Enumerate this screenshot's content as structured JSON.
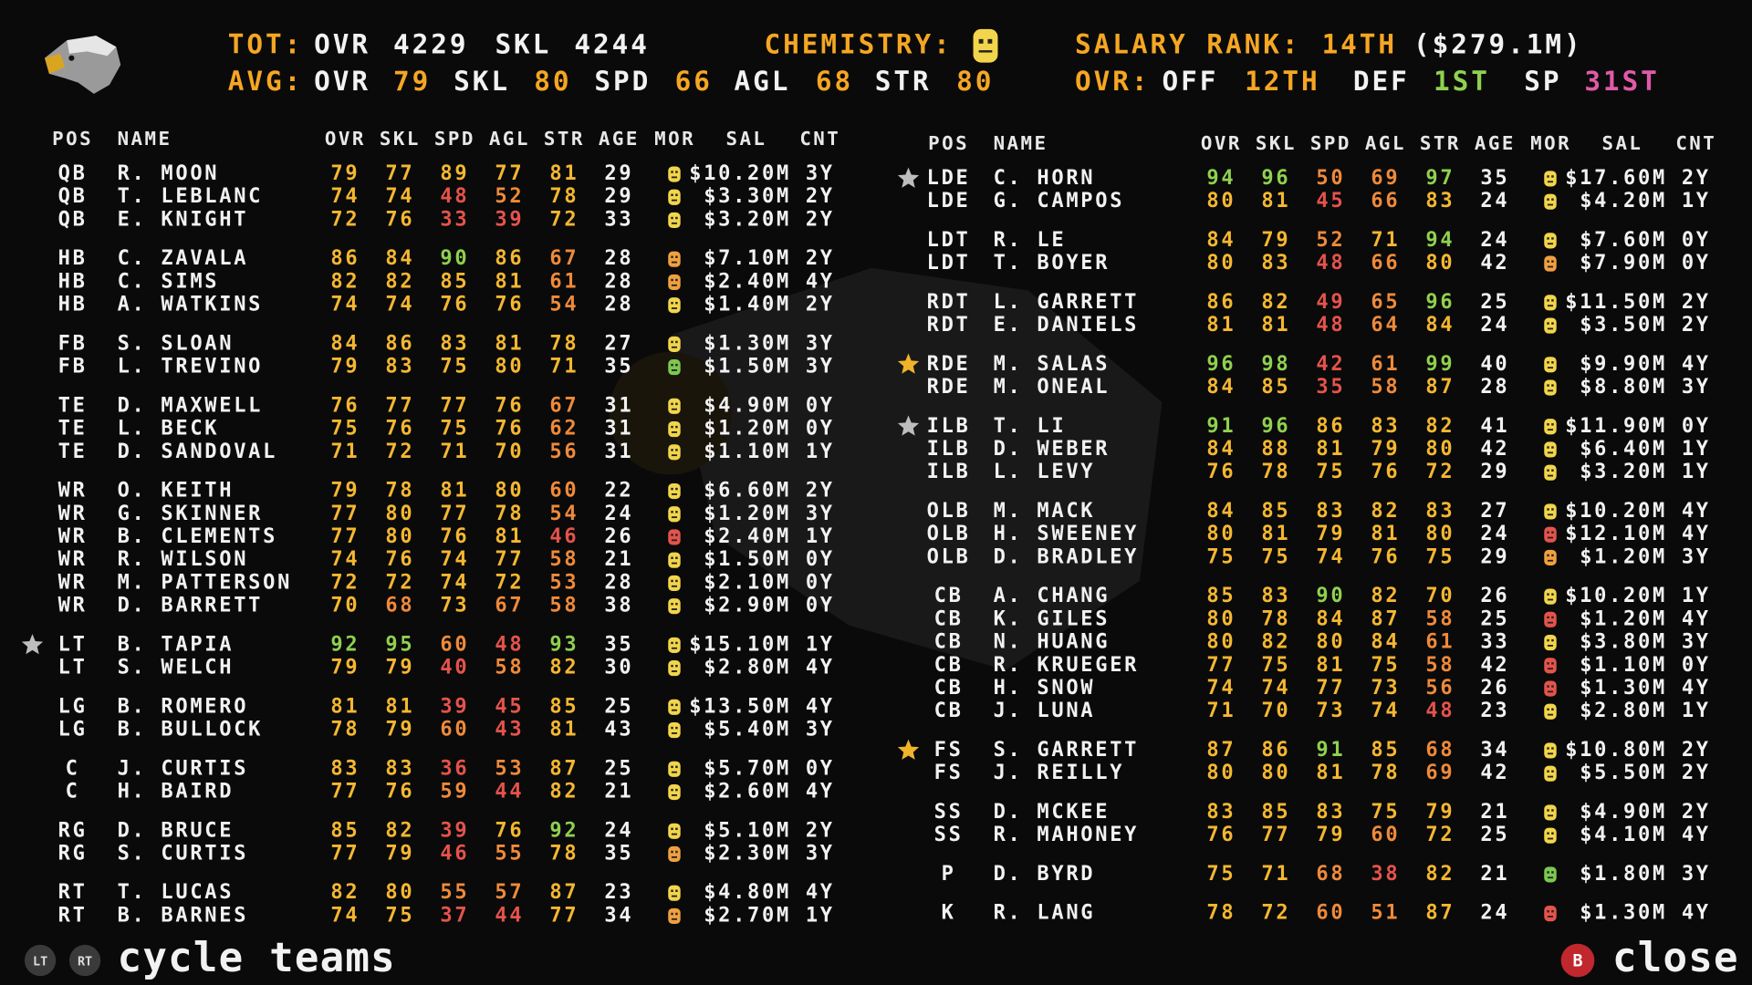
{
  "header": {
    "tot_label": "TOT:",
    "tot_ovr_label": "OVR",
    "tot_ovr": "4229",
    "tot_skl_label": "SKL",
    "tot_skl": "4244",
    "chemistry_label": "CHEMISTRY:",
    "salary_rank_label": "SALARY RANK:",
    "salary_rank": "14TH",
    "salary_total": "($279.1M)",
    "avg_label": "AVG:",
    "avg_ovr_label": "OVR",
    "avg_ovr": "79",
    "avg_skl_label": "SKL",
    "avg_skl": "80",
    "avg_spd_label": "SPD",
    "avg_spd": "66",
    "avg_agl_label": "AGL",
    "avg_agl": "68",
    "avg_str_label": "STR",
    "avg_str": "80",
    "rank_label": "OVR:",
    "off_label": "OFF",
    "off_rank": "12TH",
    "def_label": "DEF",
    "def_rank": "1ST",
    "sp_label": "SP",
    "sp_rank": "31ST"
  },
  "columns": [
    "POS",
    "NAME",
    "OVR",
    "SKL",
    "SPD",
    "AGL",
    "STR",
    "AGE",
    "MOR",
    "SAL",
    "CNT"
  ],
  "left_table": {
    "rows": [
      {
        "pos": "QB",
        "name": "R. MOON",
        "ovr": 79,
        "skl": 77,
        "spd": 89,
        "agl": 77,
        "str": 81,
        "age": 29,
        "morale": "#f2d54a",
        "sal": "$10.20M",
        "cnt": "3Y"
      },
      {
        "pos": "QB",
        "name": "T. LEBLANC",
        "ovr": 74,
        "skl": 74,
        "spd": 48,
        "agl": 52,
        "str": 78,
        "age": 29,
        "morale": "#f2d54a",
        "sal": "$3.30M",
        "cnt": "2Y"
      },
      {
        "pos": "QB",
        "name": "E. KNIGHT",
        "ovr": 72,
        "skl": 76,
        "spd": 33,
        "agl": 39,
        "str": 72,
        "age": 33,
        "morale": "#f2d54a",
        "sal": "$3.20M",
        "cnt": "2Y"
      },
      {
        "pos": "HB",
        "name": "C. ZAVALA",
        "ovr": 86,
        "skl": 84,
        "spd": 90,
        "agl": 86,
        "str": 67,
        "age": 28,
        "morale": "#f0a040",
        "sal": "$7.10M",
        "cnt": "2Y"
      },
      {
        "pos": "HB",
        "name": "C. SIMS",
        "ovr": 82,
        "skl": 82,
        "spd": 85,
        "agl": 81,
        "str": 61,
        "age": 28,
        "morale": "#f0a040",
        "sal": "$2.40M",
        "cnt": "4Y"
      },
      {
        "pos": "HB",
        "name": "A. WATKINS",
        "ovr": 74,
        "skl": 74,
        "spd": 76,
        "agl": 76,
        "str": 54,
        "age": 28,
        "morale": "#f2d54a",
        "sal": "$1.40M",
        "cnt": "2Y"
      },
      {
        "pos": "FB",
        "name": "S. SLOAN",
        "ovr": 84,
        "skl": 86,
        "spd": 83,
        "agl": 81,
        "str": 78,
        "age": 27,
        "morale": "#f2d54a",
        "sal": "$1.30M",
        "cnt": "3Y"
      },
      {
        "pos": "FB",
        "name": "L. TREVINO",
        "ovr": 79,
        "skl": 83,
        "spd": 75,
        "agl": 80,
        "str": 71,
        "age": 35,
        "morale": "#7cc850",
        "sal": "$1.50M",
        "cnt": "3Y"
      },
      {
        "pos": "TE",
        "name": "D. MAXWELL",
        "ovr": 76,
        "skl": 77,
        "spd": 77,
        "agl": 76,
        "str": 67,
        "age": 31,
        "morale": "#f2d54a",
        "sal": "$4.90M",
        "cnt": "0Y"
      },
      {
        "pos": "TE",
        "name": "L. BECK",
        "ovr": 75,
        "skl": 76,
        "spd": 75,
        "agl": 76,
        "str": 62,
        "age": 31,
        "morale": "#f2d54a",
        "sal": "$1.20M",
        "cnt": "0Y"
      },
      {
        "pos": "TE",
        "name": "D. SANDOVAL",
        "ovr": 71,
        "skl": 72,
        "spd": 71,
        "agl": 70,
        "str": 56,
        "age": 31,
        "morale": "#f2d54a",
        "sal": "$1.10M",
        "cnt": "1Y"
      },
      {
        "pos": "WR",
        "name": "O. KEITH",
        "ovr": 79,
        "skl": 78,
        "spd": 81,
        "agl": 80,
        "str": 60,
        "age": 22,
        "morale": "#f2d54a",
        "sal": "$6.60M",
        "cnt": "2Y"
      },
      {
        "pos": "WR",
        "name": "G. SKINNER",
        "ovr": 77,
        "skl": 80,
        "spd": 77,
        "agl": 78,
        "str": 54,
        "age": 24,
        "morale": "#f2d54a",
        "sal": "$1.20M",
        "cnt": "3Y"
      },
      {
        "pos": "WR",
        "name": "B. CLEMENTS",
        "ovr": 77,
        "skl": 80,
        "spd": 76,
        "agl": 81,
        "str": 46,
        "age": 26,
        "morale": "#e5534b",
        "sal": "$2.40M",
        "cnt": "1Y"
      },
      {
        "pos": "WR",
        "name": "R. WILSON",
        "ovr": 74,
        "skl": 76,
        "spd": 74,
        "agl": 77,
        "str": 58,
        "age": 21,
        "morale": "#f2d54a",
        "sal": "$1.50M",
        "cnt": "0Y"
      },
      {
        "pos": "WR",
        "name": "M. PATTERSON",
        "ovr": 72,
        "skl": 72,
        "spd": 74,
        "agl": 72,
        "str": 53,
        "age": 28,
        "morale": "#f2d54a",
        "sal": "$2.10M",
        "cnt": "0Y"
      },
      {
        "pos": "WR",
        "name": "D. BARRETT",
        "ovr": 70,
        "skl": 68,
        "spd": 73,
        "agl": 67,
        "str": 58,
        "age": 38,
        "morale": "#f2d54a",
        "sal": "$2.90M",
        "cnt": "0Y"
      },
      {
        "pos": "LT",
        "name": "B. TAPIA",
        "ovr": 92,
        "skl": 95,
        "spd": 60,
        "agl": 48,
        "str": 93,
        "age": 35,
        "morale": "#f2d54a",
        "sal": "$15.10M",
        "cnt": "1Y",
        "star": "#bdbdbd"
      },
      {
        "pos": "LT",
        "name": "S. WELCH",
        "ovr": 79,
        "skl": 79,
        "spd": 40,
        "agl": 58,
        "str": 82,
        "age": 30,
        "morale": "#f2d54a",
        "sal": "$2.80M",
        "cnt": "4Y"
      },
      {
        "pos": "LG",
        "name": "B. ROMERO",
        "ovr": 81,
        "skl": 81,
        "spd": 39,
        "agl": 45,
        "str": 85,
        "age": 25,
        "morale": "#f2d54a",
        "sal": "$13.50M",
        "cnt": "4Y"
      },
      {
        "pos": "LG",
        "name": "B. BULLOCK",
        "ovr": 78,
        "skl": 79,
        "spd": 60,
        "agl": 43,
        "str": 81,
        "age": 43,
        "morale": "#f2d54a",
        "sal": "$5.40M",
        "cnt": "3Y"
      },
      {
        "pos": "C",
        "name": "J. CURTIS",
        "ovr": 83,
        "skl": 83,
        "spd": 36,
        "agl": 53,
        "str": 87,
        "age": 25,
        "morale": "#f2d54a",
        "sal": "$5.70M",
        "cnt": "0Y"
      },
      {
        "pos": "C",
        "name": "H. BAIRD",
        "ovr": 77,
        "skl": 76,
        "spd": 59,
        "agl": 44,
        "str": 82,
        "age": 21,
        "morale": "#f2d54a",
        "sal": "$2.60M",
        "cnt": "4Y"
      },
      {
        "pos": "RG",
        "name": "D. BRUCE",
        "ovr": 85,
        "skl": 82,
        "spd": 39,
        "agl": 76,
        "str": 92,
        "age": 24,
        "morale": "#f2d54a",
        "sal": "$5.10M",
        "cnt": "2Y"
      },
      {
        "pos": "RG",
        "name": "S. CURTIS",
        "ovr": 77,
        "skl": 79,
        "spd": 46,
        "agl": 55,
        "str": 78,
        "age": 35,
        "morale": "#f0a040",
        "sal": "$2.30M",
        "cnt": "3Y"
      },
      {
        "pos": "RT",
        "name": "T. LUCAS",
        "ovr": 82,
        "skl": 80,
        "spd": 55,
        "agl": 57,
        "str": 87,
        "age": 23,
        "morale": "#f2d54a",
        "sal": "$4.80M",
        "cnt": "4Y"
      },
      {
        "pos": "RT",
        "name": "B. BARNES",
        "ovr": 74,
        "skl": 75,
        "spd": 37,
        "agl": 44,
        "str": 77,
        "age": 34,
        "morale": "#f0a040",
        "sal": "$2.70M",
        "cnt": "1Y"
      }
    ]
  },
  "right_table": {
    "rows": [
      {
        "pos": "LDE",
        "name": "C. HORN",
        "ovr": 94,
        "skl": 96,
        "spd": 50,
        "agl": 69,
        "str": 97,
        "age": 35,
        "morale": "#f2d54a",
        "sal": "$17.60M",
        "cnt": "2Y",
        "star": "#bdbdbd"
      },
      {
        "pos": "LDE",
        "name": "G. CAMPOS",
        "ovr": 80,
        "skl": 81,
        "spd": 45,
        "agl": 66,
        "str": 83,
        "age": 24,
        "morale": "#f2d54a",
        "sal": "$4.20M",
        "cnt": "1Y"
      },
      {
        "pos": "LDT",
        "name": "R. LE",
        "ovr": 84,
        "skl": 79,
        "spd": 52,
        "agl": 71,
        "str": 94,
        "age": 24,
        "morale": "#f2d54a",
        "sal": "$7.60M",
        "cnt": "0Y"
      },
      {
        "pos": "LDT",
        "name": "T. BOYER",
        "ovr": 80,
        "skl": 83,
        "spd": 48,
        "agl": 66,
        "str": 80,
        "age": 42,
        "morale": "#f0a040",
        "sal": "$7.90M",
        "cnt": "0Y"
      },
      {
        "pos": "RDT",
        "name": "L. GARRETT",
        "ovr": 86,
        "skl": 82,
        "spd": 49,
        "agl": 65,
        "str": 96,
        "age": 25,
        "morale": "#f2d54a",
        "sal": "$11.50M",
        "cnt": "2Y"
      },
      {
        "pos": "RDT",
        "name": "E. DANIELS",
        "ovr": 81,
        "skl": 81,
        "spd": 48,
        "agl": 64,
        "str": 84,
        "age": 24,
        "morale": "#f2d54a",
        "sal": "$3.50M",
        "cnt": "2Y"
      },
      {
        "pos": "RDE",
        "name": "M. SALAS",
        "ovr": 96,
        "skl": 98,
        "spd": 42,
        "agl": 61,
        "str": 99,
        "age": 40,
        "morale": "#f2d54a",
        "sal": "$9.90M",
        "cnt": "4Y",
        "star": "#f0b429"
      },
      {
        "pos": "RDE",
        "name": "M. ONEAL",
        "ovr": 84,
        "skl": 85,
        "spd": 35,
        "agl": 58,
        "str": 87,
        "age": 28,
        "morale": "#f2d54a",
        "sal": "$8.80M",
        "cnt": "3Y"
      },
      {
        "pos": "ILB",
        "name": "T. LI",
        "ovr": 91,
        "skl": 96,
        "spd": 86,
        "agl": 83,
        "str": 82,
        "age": 41,
        "morale": "#f2d54a",
        "sal": "$11.90M",
        "cnt": "0Y",
        "star": "#bdbdbd"
      },
      {
        "pos": "ILB",
        "name": "D. WEBER",
        "ovr": 84,
        "skl": 88,
        "spd": 81,
        "agl": 79,
        "str": 80,
        "age": 42,
        "morale": "#f2d54a",
        "sal": "$6.40M",
        "cnt": "1Y"
      },
      {
        "pos": "ILB",
        "name": "L. LEVY",
        "ovr": 76,
        "skl": 78,
        "spd": 75,
        "agl": 76,
        "str": 72,
        "age": 29,
        "morale": "#f2d54a",
        "sal": "$3.20M",
        "cnt": "1Y"
      },
      {
        "pos": "OLB",
        "name": "M. MACK",
        "ovr": 84,
        "skl": 85,
        "spd": 83,
        "agl": 82,
        "str": 83,
        "age": 27,
        "morale": "#f2d54a",
        "sal": "$10.20M",
        "cnt": "4Y"
      },
      {
        "pos": "OLB",
        "name": "H. SWEENEY",
        "ovr": 80,
        "skl": 81,
        "spd": 79,
        "agl": 81,
        "str": 80,
        "age": 24,
        "morale": "#e5534b",
        "sal": "$12.10M",
        "cnt": "4Y"
      },
      {
        "pos": "OLB",
        "name": "D. BRADLEY",
        "ovr": 75,
        "skl": 75,
        "spd": 74,
        "agl": 76,
        "str": 75,
        "age": 29,
        "morale": "#f0a040",
        "sal": "$1.20M",
        "cnt": "3Y"
      },
      {
        "pos": "CB",
        "name": "A. CHANG",
        "ovr": 85,
        "skl": 83,
        "spd": 90,
        "agl": 82,
        "str": 70,
        "age": 26,
        "morale": "#f2d54a",
        "sal": "$10.20M",
        "cnt": "1Y"
      },
      {
        "pos": "CB",
        "name": "K. GILES",
        "ovr": 80,
        "skl": 78,
        "spd": 84,
        "agl": 87,
        "str": 58,
        "age": 25,
        "morale": "#e5534b",
        "sal": "$1.20M",
        "cnt": "4Y"
      },
      {
        "pos": "CB",
        "name": "N. HUANG",
        "ovr": 80,
        "skl": 82,
        "spd": 80,
        "agl": 84,
        "str": 61,
        "age": 33,
        "morale": "#f2d54a",
        "sal": "$3.80M",
        "cnt": "3Y"
      },
      {
        "pos": "CB",
        "name": "R. KRUEGER",
        "ovr": 77,
        "skl": 75,
        "spd": 81,
        "agl": 75,
        "str": 58,
        "age": 42,
        "morale": "#e5534b",
        "sal": "$1.10M",
        "cnt": "0Y"
      },
      {
        "pos": "CB",
        "name": "H. SNOW",
        "ovr": 74,
        "skl": 74,
        "spd": 77,
        "agl": 73,
        "str": 56,
        "age": 26,
        "morale": "#e5534b",
        "sal": "$1.30M",
        "cnt": "4Y"
      },
      {
        "pos": "CB",
        "name": "J. LUNA",
        "ovr": 71,
        "skl": 70,
        "spd": 73,
        "agl": 74,
        "str": 48,
        "age": 23,
        "morale": "#f2d54a",
        "sal": "$2.80M",
        "cnt": "1Y"
      },
      {
        "pos": "FS",
        "name": "S. GARRETT",
        "ovr": 87,
        "skl": 86,
        "spd": 91,
        "agl": 85,
        "str": 68,
        "age": 34,
        "morale": "#f2d54a",
        "sal": "$10.80M",
        "cnt": "2Y",
        "star": "#f0b429"
      },
      {
        "pos": "FS",
        "name": "J. REILLY",
        "ovr": 80,
        "skl": 80,
        "spd": 81,
        "agl": 78,
        "str": 69,
        "age": 42,
        "morale": "#f2d54a",
        "sal": "$5.50M",
        "cnt": "2Y"
      },
      {
        "pos": "SS",
        "name": "D. MCKEE",
        "ovr": 83,
        "skl": 85,
        "spd": 83,
        "agl": 75,
        "str": 79,
        "age": 21,
        "morale": "#f2d54a",
        "sal": "$4.90M",
        "cnt": "2Y"
      },
      {
        "pos": "SS",
        "name": "R. MAHONEY",
        "ovr": 76,
        "skl": 77,
        "spd": 79,
        "agl": 60,
        "str": 72,
        "age": 25,
        "morale": "#f2d54a",
        "sal": "$4.10M",
        "cnt": "4Y"
      },
      {
        "pos": "P",
        "name": "D. BYRD",
        "ovr": 75,
        "skl": 71,
        "spd": 68,
        "agl": 38,
        "str": 82,
        "age": 21,
        "morale": "#7cc850",
        "sal": "$1.80M",
        "cnt": "3Y"
      },
      {
        "pos": "K",
        "name": "R. LANG",
        "ovr": 78,
        "skl": 72,
        "spd": 60,
        "agl": 51,
        "str": 87,
        "age": 24,
        "morale": "#e5534b",
        "sal": "$1.30M",
        "cnt": "4Y"
      }
    ]
  },
  "footer": {
    "lt": "LT",
    "rt": "RT",
    "cycle": "cycle teams",
    "b": "B",
    "close": "close"
  }
}
